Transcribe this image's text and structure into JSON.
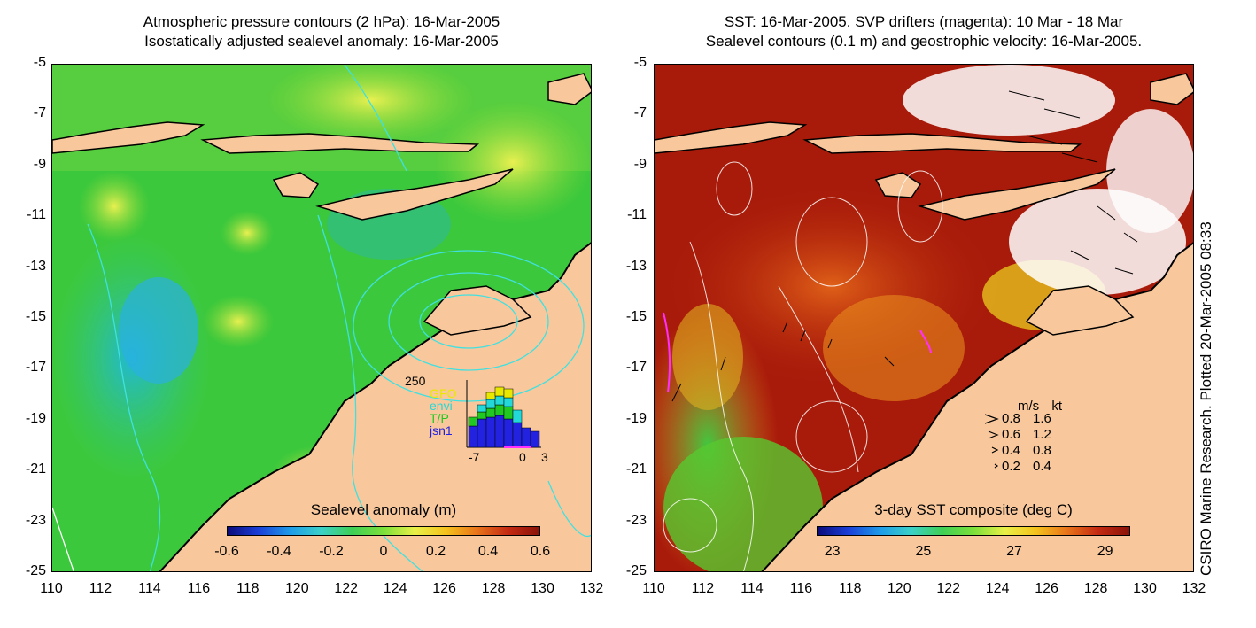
{
  "left_panel": {
    "title_line1": "Atmospheric pressure contours (2 hPa): 16-Mar-2005",
    "title_line2": "Isostatically adjusted sealevel anomaly: 16-Mar-2005",
    "colorbar_title": "Sealevel anomaly (m)",
    "colorbar_ticks": [
      "-0.6",
      "-0.4",
      "-0.2",
      "0",
      "0.2",
      "0.4",
      "0.6"
    ],
    "histogram": {
      "top_label": "250",
      "legend": [
        {
          "label": "GFO",
          "color": "#e8e800"
        },
        {
          "label": "envi",
          "color": "#22d8d8"
        },
        {
          "label": "T/P",
          "color": "#22c822"
        },
        {
          "label": "jsn1",
          "color": "#2222e0"
        }
      ],
      "x_labels": [
        "-7",
        "0",
        "3"
      ]
    }
  },
  "right_panel": {
    "title_line1": "SST: 16-Mar-2005. SVP drifters (magenta): 10 Mar - 18 Mar",
    "title_line2": "Sealevel contours (0.1 m) and geostrophic velocity: 16-Mar-2005.",
    "colorbar_title": "3-day SST composite (deg C)",
    "colorbar_ticks": [
      "23",
      "25",
      "27",
      "29"
    ],
    "speed_legend": {
      "header_ms": "m/s",
      "header_kt": "kt",
      "rows": [
        {
          "ms": "0.8",
          "kt": "1.6"
        },
        {
          "ms": "0.6",
          "kt": "1.2"
        },
        {
          "ms": "0.4",
          "kt": "0.8"
        },
        {
          "ms": "0.2",
          "kt": "0.4"
        }
      ]
    }
  },
  "axes": {
    "y_ticks": [
      "-5",
      "-7",
      "-9",
      "-11",
      "-13",
      "-15",
      "-17",
      "-19",
      "-21",
      "-23",
      "-25"
    ],
    "x_ticks": [
      "110",
      "112",
      "114",
      "116",
      "118",
      "120",
      "122",
      "124",
      "126",
      "128",
      "130",
      "132"
    ]
  },
  "credit": "CSIRO Marine Research. Plotted 20-Mar-2005 08:33",
  "colors": {
    "land": "#f8c89c",
    "sea_green": "#3cc83c",
    "sst_dark_red": "#a01808",
    "contour_cyan": "#40e0e0"
  }
}
